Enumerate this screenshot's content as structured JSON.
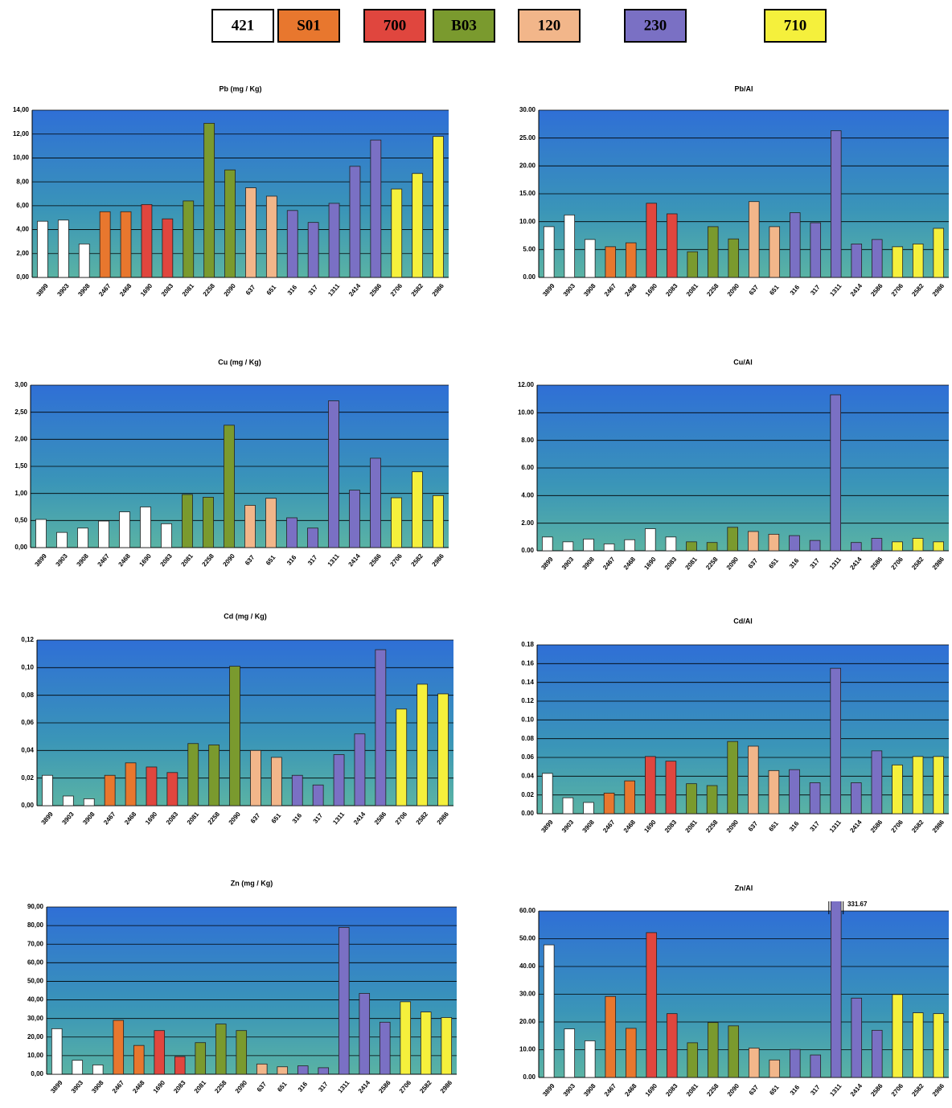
{
  "legend": [
    {
      "label": "421",
      "color": "#ffffff"
    },
    {
      "label": "S01",
      "color": "#e8772e"
    },
    {
      "label": "700",
      "color": "#e0463e"
    },
    {
      "label": "B03",
      "color": "#7a9a2e"
    },
    {
      "label": "120",
      "color": "#f2b68a"
    },
    {
      "label": "230",
      "color": "#7a70c4"
    },
    {
      "label": "710",
      "color": "#f5f03c"
    }
  ],
  "chart_data": [
    {
      "type": "bar",
      "title": "Pb (mg / Kg)",
      "categories": [
        "3899",
        "3903",
        "3908",
        "2467",
        "2468",
        "1690",
        "2083",
        "2081",
        "2258",
        "2090",
        "637",
        "651",
        "316",
        "317",
        "1311",
        "2414",
        "2586",
        "2706",
        "2582",
        "2986"
      ],
      "values": [
        4.7,
        4.8,
        2.8,
        5.5,
        5.5,
        6.1,
        4.9,
        6.4,
        12.9,
        9.0,
        7.5,
        6.8,
        5.6,
        4.6,
        6.2,
        9.3,
        11.5,
        7.4,
        8.7,
        11.8
      ],
      "colors": [
        "#ffffff",
        "#ffffff",
        "#ffffff",
        "#e8772e",
        "#e8772e",
        "#e0463e",
        "#e0463e",
        "#7a9a2e",
        "#7a9a2e",
        "#7a9a2e",
        "#f2b68a",
        "#f2b68a",
        "#7a70c4",
        "#7a70c4",
        "#7a70c4",
        "#7a70c4",
        "#7a70c4",
        "#f5f03c",
        "#f5f03c",
        "#f5f03c"
      ],
      "ylim": [
        0,
        14
      ],
      "yticks": [
        {
          "value": 0,
          "label": "0,00"
        },
        {
          "value": 2,
          "label": "2,00"
        },
        {
          "value": 4,
          "label": "4,00"
        },
        {
          "value": 6,
          "label": "6,00"
        },
        {
          "value": 8,
          "label": "8,00"
        },
        {
          "value": 10,
          "label": "10,00"
        },
        {
          "value": 12,
          "label": "12,00"
        },
        {
          "value": 14,
          "label": "14,00"
        }
      ],
      "grid": true
    },
    {
      "type": "bar",
      "title": "Pb/Al",
      "categories": [
        "3899",
        "3903",
        "3908",
        "2467",
        "2468",
        "1690",
        "2083",
        "2081",
        "2258",
        "2090",
        "637",
        "651",
        "316",
        "317",
        "1311",
        "2414",
        "2586",
        "2706",
        "2582",
        "2986"
      ],
      "values": [
        9.1,
        11.2,
        6.8,
        5.5,
        6.2,
        13.3,
        11.4,
        4.6,
        9.1,
        6.9,
        13.6,
        9.1,
        11.6,
        9.8,
        26.3,
        6.0,
        6.8,
        5.5,
        6.0,
        8.8
      ],
      "colors": [
        "#ffffff",
        "#ffffff",
        "#ffffff",
        "#e8772e",
        "#e8772e",
        "#e0463e",
        "#e0463e",
        "#7a9a2e",
        "#7a9a2e",
        "#7a9a2e",
        "#f2b68a",
        "#f2b68a",
        "#7a70c4",
        "#7a70c4",
        "#7a70c4",
        "#7a70c4",
        "#7a70c4",
        "#f5f03c",
        "#f5f03c",
        "#f5f03c"
      ],
      "ylim": [
        0,
        30
      ],
      "yticks": [
        {
          "value": 0,
          "label": "0.00"
        },
        {
          "value": 5,
          "label": "5.00"
        },
        {
          "value": 10,
          "label": "10.00"
        },
        {
          "value": 15,
          "label": "15.00"
        },
        {
          "value": 20,
          "label": "20.00"
        },
        {
          "value": 25,
          "label": "25.00"
        },
        {
          "value": 30,
          "label": "30.00"
        }
      ],
      "grid": true
    },
    {
      "type": "bar",
      "title": "Cu (mg / Kg)",
      "categories": [
        "3899",
        "3903",
        "3908",
        "2467",
        "2468",
        "1690",
        "2083",
        "2081",
        "2258",
        "2090",
        "637",
        "651",
        "316",
        "317",
        "1311",
        "2414",
        "2586",
        "2706",
        "2582",
        "2986"
      ],
      "values": [
        0.52,
        0.28,
        0.36,
        0.49,
        0.66,
        0.75,
        0.44,
        0.98,
        0.93,
        2.26,
        0.78,
        0.91,
        0.55,
        0.36,
        2.71,
        1.06,
        1.65,
        0.92,
        1.4,
        0.96
      ],
      "colors": [
        "#ffffff",
        "#ffffff",
        "#ffffff",
        "#ffffff",
        "#ffffff",
        "#ffffff",
        "#ffffff",
        "#7a9a2e",
        "#7a9a2e",
        "#7a9a2e",
        "#f2b68a",
        "#f2b68a",
        "#7a70c4",
        "#7a70c4",
        "#7a70c4",
        "#7a70c4",
        "#7a70c4",
        "#f5f03c",
        "#f5f03c",
        "#f5f03c"
      ],
      "ylim": [
        0,
        3
      ],
      "yticks": [
        {
          "value": 0,
          "label": "0,00"
        },
        {
          "value": 0.5,
          "label": "0,50"
        },
        {
          "value": 1,
          "label": "1,00"
        },
        {
          "value": 1.5,
          "label": "1,50"
        },
        {
          "value": 2,
          "label": "2,00"
        },
        {
          "value": 2.5,
          "label": "2,50"
        },
        {
          "value": 3,
          "label": "3,00"
        }
      ],
      "grid": true
    },
    {
      "type": "bar",
      "title": "Cu/Al",
      "categories": [
        "3899",
        "3903",
        "3908",
        "2467",
        "2468",
        "1690",
        "2083",
        "2081",
        "2258",
        "2090",
        "637",
        "651",
        "316",
        "317",
        "1311",
        "2414",
        "2586",
        "2706",
        "2582",
        "2986"
      ],
      "values": [
        1.0,
        0.65,
        0.85,
        0.5,
        0.8,
        1.6,
        1.0,
        0.65,
        0.6,
        1.7,
        1.4,
        1.2,
        1.1,
        0.75,
        11.3,
        0.6,
        0.9,
        0.65,
        0.9,
        0.65
      ],
      "colors": [
        "#ffffff",
        "#ffffff",
        "#ffffff",
        "#ffffff",
        "#ffffff",
        "#ffffff",
        "#ffffff",
        "#7a9a2e",
        "#7a9a2e",
        "#7a9a2e",
        "#f2b68a",
        "#f2b68a",
        "#7a70c4",
        "#7a70c4",
        "#7a70c4",
        "#7a70c4",
        "#7a70c4",
        "#f5f03c",
        "#f5f03c",
        "#f5f03c"
      ],
      "ylim": [
        0,
        12
      ],
      "yticks": [
        {
          "value": 0,
          "label": "0.00"
        },
        {
          "value": 2,
          "label": "2.00"
        },
        {
          "value": 4,
          "label": "4.00"
        },
        {
          "value": 6,
          "label": "6.00"
        },
        {
          "value": 8,
          "label": "8.00"
        },
        {
          "value": 10,
          "label": "10.00"
        },
        {
          "value": 12,
          "label": "12.00"
        }
      ],
      "grid": true
    },
    {
      "type": "bar",
      "title": "Cd (mg / Kg)",
      "categories": [
        "3899",
        "3903",
        "3908",
        "2467",
        "2468",
        "1690",
        "2083",
        "2081",
        "2258",
        "2090",
        "637",
        "651",
        "316",
        "317",
        "1311",
        "2414",
        "2586",
        "2706",
        "2582",
        "2986"
      ],
      "values": [
        0.022,
        0.007,
        0.005,
        0.022,
        0.031,
        0.028,
        0.024,
        0.045,
        0.044,
        0.101,
        0.04,
        0.035,
        0.022,
        0.015,
        0.037,
        0.052,
        0.113,
        0.07,
        0.088,
        0.081
      ],
      "colors": [
        "#ffffff",
        "#ffffff",
        "#ffffff",
        "#e8772e",
        "#e8772e",
        "#e0463e",
        "#e0463e",
        "#7a9a2e",
        "#7a9a2e",
        "#7a9a2e",
        "#f2b68a",
        "#f2b68a",
        "#7a70c4",
        "#7a70c4",
        "#7a70c4",
        "#7a70c4",
        "#7a70c4",
        "#f5f03c",
        "#f5f03c",
        "#f5f03c"
      ],
      "ylim": [
        0,
        0.12
      ],
      "yticks": [
        {
          "value": 0,
          "label": "0,00"
        },
        {
          "value": 0.02,
          "label": "0,02"
        },
        {
          "value": 0.04,
          "label": "0,04"
        },
        {
          "value": 0.06,
          "label": "0,06"
        },
        {
          "value": 0.08,
          "label": "0,08"
        },
        {
          "value": 0.1,
          "label": "0,10"
        },
        {
          "value": 0.12,
          "label": "0,12"
        }
      ],
      "grid": true
    },
    {
      "type": "bar",
      "title": "Cd/Al",
      "categories": [
        "3899",
        "3903",
        "3908",
        "2467",
        "2468",
        "1690",
        "2083",
        "2081",
        "2258",
        "2090",
        "637",
        "651",
        "316",
        "317",
        "1311",
        "2414",
        "2586",
        "2706",
        "2582",
        "2986"
      ],
      "values": [
        0.043,
        0.017,
        0.012,
        0.022,
        0.035,
        0.061,
        0.056,
        0.032,
        0.03,
        0.077,
        0.072,
        0.046,
        0.047,
        0.033,
        0.155,
        0.033,
        0.067,
        0.052,
        0.061,
        0.061
      ],
      "colors": [
        "#ffffff",
        "#ffffff",
        "#ffffff",
        "#e8772e",
        "#e8772e",
        "#e0463e",
        "#e0463e",
        "#7a9a2e",
        "#7a9a2e",
        "#7a9a2e",
        "#f2b68a",
        "#f2b68a",
        "#7a70c4",
        "#7a70c4",
        "#7a70c4",
        "#7a70c4",
        "#7a70c4",
        "#f5f03c",
        "#f5f03c",
        "#f5f03c"
      ],
      "ylim": [
        0,
        0.18
      ],
      "yticks": [
        {
          "value": 0,
          "label": "0.00"
        },
        {
          "value": 0.02,
          "label": "0.02"
        },
        {
          "value": 0.04,
          "label": "0.04"
        },
        {
          "value": 0.06,
          "label": "0.06"
        },
        {
          "value": 0.08,
          "label": "0.08"
        },
        {
          "value": 0.1,
          "label": "0.10"
        },
        {
          "value": 0.12,
          "label": "0.12"
        },
        {
          "value": 0.14,
          "label": "0.14"
        },
        {
          "value": 0.16,
          "label": "0.16"
        },
        {
          "value": 0.18,
          "label": "0.18"
        }
      ],
      "grid": true
    },
    {
      "type": "bar",
      "title": "Zn (mg / Kg)",
      "categories": [
        "3899",
        "3903",
        "3908",
        "2467",
        "2468",
        "1690",
        "2083",
        "2081",
        "2258",
        "2090",
        "637",
        "651",
        "316",
        "317",
        "1311",
        "2414",
        "2586",
        "2706",
        "2582",
        "2986"
      ],
      "values": [
        24.5,
        7.5,
        5.0,
        29,
        15.5,
        23.5,
        9.5,
        17,
        27,
        23.5,
        5.5,
        4.0,
        4.5,
        3.5,
        79,
        43.5,
        28,
        39,
        33.5,
        30.5
      ],
      "colors": [
        "#ffffff",
        "#ffffff",
        "#ffffff",
        "#e8772e",
        "#e8772e",
        "#e0463e",
        "#e0463e",
        "#7a9a2e",
        "#7a9a2e",
        "#7a9a2e",
        "#f2b68a",
        "#f2b68a",
        "#7a70c4",
        "#7a70c4",
        "#7a70c4",
        "#7a70c4",
        "#7a70c4",
        "#f5f03c",
        "#f5f03c",
        "#f5f03c"
      ],
      "ylim": [
        0,
        90
      ],
      "yticks": [
        {
          "value": 0,
          "label": "0,00"
        },
        {
          "value": 10,
          "label": "10,00"
        },
        {
          "value": 20,
          "label": "20,00"
        },
        {
          "value": 30,
          "label": "30,00"
        },
        {
          "value": 40,
          "label": "40,00"
        },
        {
          "value": 50,
          "label": "50,00"
        },
        {
          "value": 60,
          "label": "60,00"
        },
        {
          "value": 70,
          "label": "70,00"
        },
        {
          "value": 80,
          "label": "80,00"
        },
        {
          "value": 90,
          "label": "90,00"
        }
      ],
      "grid": true
    },
    {
      "type": "bar",
      "title": "Zn/Al",
      "categories": [
        "3899",
        "3903",
        "3908",
        "2467",
        "2468",
        "1690",
        "2083",
        "2081",
        "2258",
        "2090",
        "637",
        "651",
        "316",
        "317",
        "1311",
        "2414",
        "2586",
        "2706",
        "2582",
        "2986"
      ],
      "values": [
        47.8,
        17.5,
        13.2,
        29.2,
        17.7,
        52.2,
        23.0,
        12.5,
        19.8,
        18.6,
        10.6,
        6.3,
        10.1,
        8.1,
        331.67,
        28.6,
        17.0,
        29.9,
        23.3,
        23.0
      ],
      "value_labels": [
        null,
        null,
        null,
        null,
        null,
        null,
        null,
        null,
        null,
        null,
        null,
        null,
        null,
        null,
        "331.67",
        null,
        null,
        null,
        null,
        null
      ],
      "colors": [
        "#ffffff",
        "#ffffff",
        "#ffffff",
        "#e8772e",
        "#e8772e",
        "#e0463e",
        "#e0463e",
        "#7a9a2e",
        "#7a9a2e",
        "#7a9a2e",
        "#f2b68a",
        "#f2b68a",
        "#7a70c4",
        "#7a70c4",
        "#7a70c4",
        "#7a70c4",
        "#7a70c4",
        "#f5f03c",
        "#f5f03c",
        "#f5f03c"
      ],
      "ylim": [
        0,
        60
      ],
      "yticks": [
        {
          "value": 0,
          "label": "0.00"
        },
        {
          "value": 10,
          "label": "10.00"
        },
        {
          "value": 20,
          "label": "20.00"
        },
        {
          "value": 30,
          "label": "30.00"
        },
        {
          "value": 40,
          "label": "40.00"
        },
        {
          "value": 50,
          "label": "50.00"
        },
        {
          "value": 60,
          "label": "60.00"
        }
      ],
      "grid": true
    }
  ]
}
